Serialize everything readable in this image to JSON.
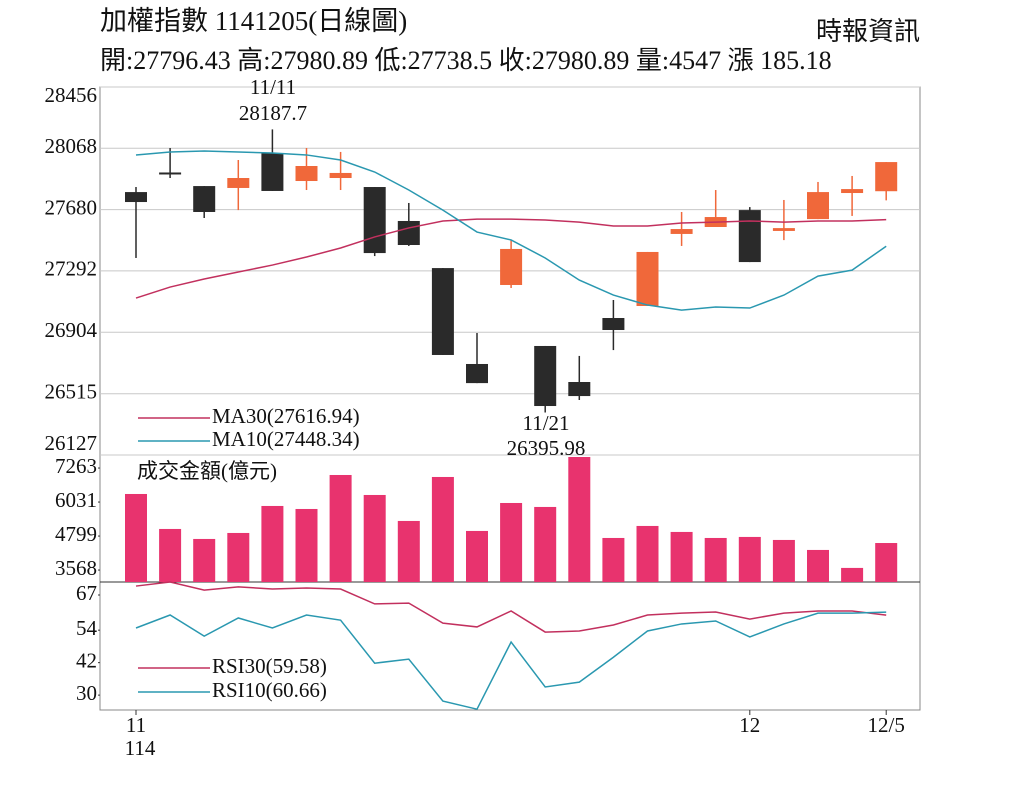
{
  "chart_data": [
    {
      "type": "candlestick",
      "title": "加權指數 1141205(日線圖)",
      "subtitle": "開:27796.43 高:27980.89 低:27738.5 收:27980.89 量:4547 漲 185.18",
      "source": "時報資訊",
      "up_color": "#f0683a",
      "down_color": "#2a2a2a",
      "open": [
        27791,
        27915,
        27829,
        27817,
        28038,
        27861,
        27880,
        27823,
        27608,
        27310,
        26703,
        27203,
        26817,
        26589,
        26994,
        27070,
        27526,
        27570,
        27677,
        27545,
        27620,
        27785,
        27796.43
      ],
      "high": [
        27823,
        28070,
        27829,
        27994,
        28187.7,
        28070,
        28045,
        27823,
        27722,
        27310,
        26899,
        27488,
        26817,
        26754,
        27108,
        27412,
        27665,
        27804,
        27696,
        27741,
        27855,
        27893,
        27980.89
      ],
      "low": [
        27374,
        27880,
        27627,
        27677,
        27798,
        27804,
        27804,
        27386,
        27450,
        26760,
        26582,
        27184,
        26395.98,
        26475,
        26791,
        27070,
        27450,
        27570,
        27348,
        27487,
        27620,
        27640,
        27738.5
      ],
      "close": [
        27728,
        27905,
        27665,
        27880,
        27798,
        27956,
        27912,
        27405,
        27456,
        26760,
        26582,
        27431,
        26437,
        26500,
        26918,
        27412,
        27557,
        27633,
        27348,
        27563,
        27791,
        27810,
        27980.89
      ],
      "series": [
        {
          "name": "MA30(27616.94)",
          "color": "#c2305e",
          "values": [
            27120,
            27190,
            27241,
            27285,
            27329,
            27380,
            27437,
            27507,
            27564,
            27608,
            27620,
            27620,
            27614,
            27601,
            27576,
            27576,
            27595,
            27601,
            27608,
            27601,
            27608,
            27608,
            27616.94
          ]
        },
        {
          "name": "MA10(27448.34)",
          "color": "#2a98b0",
          "values": [
            28026,
            28045,
            28051,
            28045,
            28038,
            28026,
            27994,
            27918,
            27804,
            27677,
            27538,
            27488,
            27374,
            27234,
            27139,
            27076,
            27044,
            27064,
            27057,
            27139,
            27259,
            27297,
            27448.34
          ]
        }
      ],
      "annotations": [
        "11/11",
        "28187.7",
        "11/21",
        "26395.98"
      ],
      "ylim": [
        26127,
        28456
      ],
      "yticks": [
        26127,
        26515,
        26904,
        27292,
        27680,
        28068,
        28456
      ],
      "grid": true
    },
    {
      "type": "bar",
      "title": "成交金額(億元)",
      "color": "#e8336e",
      "values": [
        6323,
        5056,
        4694,
        4911,
        5889,
        5780,
        7011,
        6287,
        5346,
        6939,
        4984,
        5997,
        5853,
        7663,
        4730,
        5165,
        4948,
        4730,
        4767,
        4658,
        4296,
        3645,
        4547
      ],
      "ylim": [
        3135,
        7735
      ],
      "yticks": [
        3568,
        4799,
        6031,
        7263
      ],
      "grid": false
    },
    {
      "type": "line",
      "categories": [
        "11",
        null,
        null,
        null,
        null,
        null,
        null,
        null,
        null,
        null,
        null,
        null,
        null,
        null,
        null,
        null,
        null,
        null,
        "12",
        null,
        null,
        null,
        "12/5"
      ],
      "year_label": "114",
      "series": [
        {
          "name": "RSI30(59.58)",
          "color": "#c2305e",
          "values": [
            70.3,
            71.8,
            68.8,
            70,
            69.2,
            69.6,
            69.2,
            63.7,
            64,
            56.6,
            55.2,
            61.1,
            53.3,
            53.7,
            55.9,
            59.6,
            60.3,
            60.7,
            58.1,
            60.3,
            61.1,
            61.1,
            59.58
          ]
        },
        {
          "name": "RSI10(60.66)",
          "color": "#2a98b0",
          "values": [
            54.8,
            59.6,
            51.8,
            58.5,
            54.8,
            59.6,
            57.7,
            41.8,
            43.3,
            27.8,
            24.8,
            49.6,
            33,
            34.8,
            44,
            53.7,
            56.3,
            57.4,
            51.5,
            56.3,
            60.3,
            60.3,
            60.66
          ]
        }
      ],
      "ylim": [
        24.5,
        71.8
      ],
      "yticks": [
        30,
        42,
        54,
        67
      ],
      "grid": false
    }
  ]
}
